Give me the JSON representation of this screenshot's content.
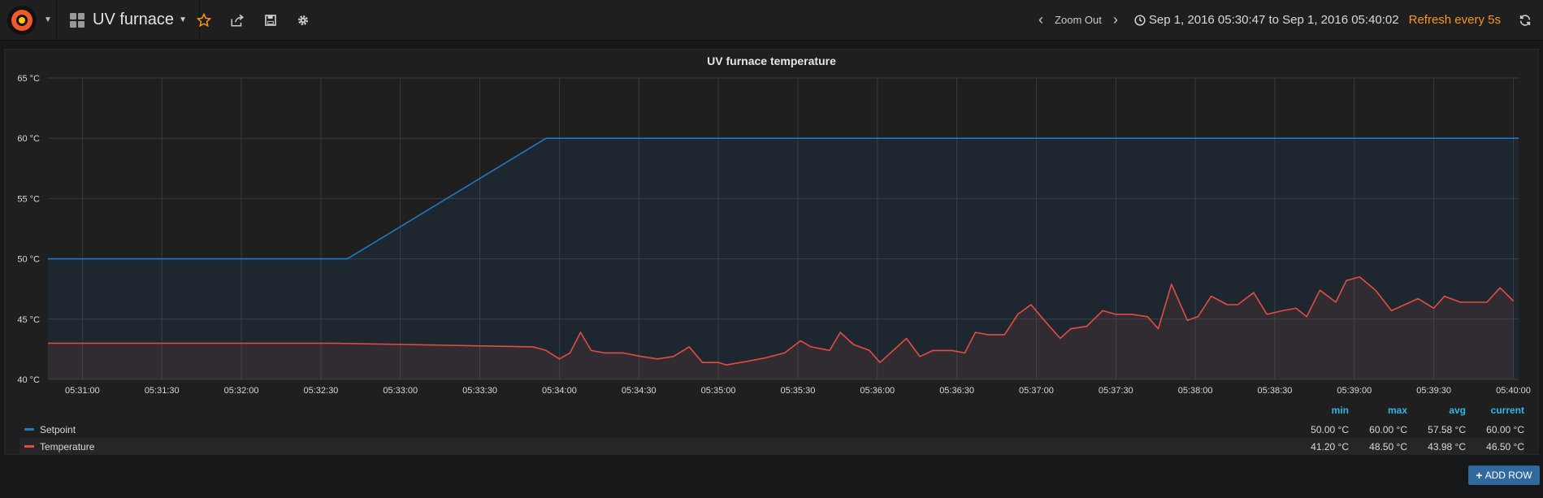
{
  "nav": {
    "dashboard_title": "UV furnace",
    "zoom_label": "Zoom Out",
    "time_range": "Sep 1, 2016 05:30:47 to Sep 1, 2016 05:40:02",
    "refresh_label": "Refresh every 5s"
  },
  "panel": {
    "title": "UV furnace temperature"
  },
  "legend": {
    "headers": [
      "min",
      "max",
      "avg",
      "current"
    ],
    "rows": [
      {
        "name": "Setpoint",
        "color": "#1f78c1",
        "min": "50.00 °C",
        "max": "60.00 °C",
        "avg": "57.58 °C",
        "current": "60.00 °C"
      },
      {
        "name": "Temperature",
        "color": "#e24d42",
        "min": "41.20 °C",
        "max": "48.50 °C",
        "avg": "43.98 °C",
        "current": "46.50 °C"
      }
    ]
  },
  "add_row_label": "ADD ROW",
  "chart_data": {
    "type": "line",
    "title": "UV furnace temperature",
    "x_start": "05:30:47",
    "x_end": "05:40:02",
    "x_ticks": [
      "05:31:00",
      "05:31:30",
      "05:32:00",
      "05:32:30",
      "05:33:00",
      "05:33:30",
      "05:34:00",
      "05:34:30",
      "05:35:00",
      "05:35:30",
      "05:36:00",
      "05:36:30",
      "05:37:00",
      "05:37:30",
      "05:38:00",
      "05:38:30",
      "05:39:00",
      "05:39:30",
      "05:40:00"
    ],
    "y_ticks": [
      "40 °C",
      "45 °C",
      "50 °C",
      "55 °C",
      "60 °C",
      "65 °C"
    ],
    "ylim": [
      40,
      65
    ],
    "grid": true,
    "legend_placement": "bottom",
    "series": [
      {
        "name": "Setpoint",
        "color": "#1f78c1",
        "points": [
          [
            "05:30:47",
            50
          ],
          [
            "05:32:40",
            50
          ],
          [
            "05:33:55",
            60
          ],
          [
            "05:40:02",
            60
          ]
        ]
      },
      {
        "name": "Temperature",
        "color": "#e24d42",
        "points": [
          [
            "05:30:47",
            43.0
          ],
          [
            "05:32:35",
            43.0
          ],
          [
            "05:33:50",
            42.7
          ],
          [
            "05:33:55",
            42.4
          ],
          [
            "05:34:00",
            41.7
          ],
          [
            "05:34:04",
            42.2
          ],
          [
            "05:34:08",
            43.9
          ],
          [
            "05:34:12",
            42.4
          ],
          [
            "05:34:17",
            42.2
          ],
          [
            "05:34:24",
            42.2
          ],
          [
            "05:34:31",
            41.9
          ],
          [
            "05:34:37",
            41.7
          ],
          [
            "05:34:43",
            41.9
          ],
          [
            "05:34:49",
            42.7
          ],
          [
            "05:34:54",
            41.4
          ],
          [
            "05:35:00",
            41.4
          ],
          [
            "05:35:03",
            41.2
          ],
          [
            "05:35:11",
            41.5
          ],
          [
            "05:35:18",
            41.8
          ],
          [
            "05:35:25",
            42.2
          ],
          [
            "05:35:31",
            43.2
          ],
          [
            "05:35:35",
            42.7
          ],
          [
            "05:35:42",
            42.4
          ],
          [
            "05:35:46",
            43.9
          ],
          [
            "05:35:51",
            42.9
          ],
          [
            "05:35:57",
            42.4
          ],
          [
            "05:36:01",
            41.4
          ],
          [
            "05:36:11",
            43.4
          ],
          [
            "05:36:16",
            41.9
          ],
          [
            "05:36:21",
            42.4
          ],
          [
            "05:36:28",
            42.4
          ],
          [
            "05:36:33",
            42.2
          ],
          [
            "05:36:37",
            43.9
          ],
          [
            "05:36:42",
            43.7
          ],
          [
            "05:36:48",
            43.7
          ],
          [
            "05:36:53",
            45.4
          ],
          [
            "05:36:58",
            46.2
          ],
          [
            "05:37:03",
            44.9
          ],
          [
            "05:37:09",
            43.4
          ],
          [
            "05:37:13",
            44.2
          ],
          [
            "05:37:19",
            44.4
          ],
          [
            "05:37:25",
            45.7
          ],
          [
            "05:37:30",
            45.4
          ],
          [
            "05:37:36",
            45.4
          ],
          [
            "05:37:42",
            45.2
          ],
          [
            "05:37:46",
            44.2
          ],
          [
            "05:37:51",
            47.9
          ],
          [
            "05:37:57",
            44.9
          ],
          [
            "05:38:01",
            45.2
          ],
          [
            "05:38:06",
            46.9
          ],
          [
            "05:38:12",
            46.2
          ],
          [
            "05:38:16",
            46.2
          ],
          [
            "05:38:22",
            47.2
          ],
          [
            "05:38:27",
            45.4
          ],
          [
            "05:38:33",
            45.7
          ],
          [
            "05:38:38",
            45.9
          ],
          [
            "05:38:42",
            45.2
          ],
          [
            "05:38:47",
            47.4
          ],
          [
            "05:38:53",
            46.4
          ],
          [
            "05:38:57",
            48.2
          ],
          [
            "05:39:02",
            48.5
          ],
          [
            "05:39:08",
            47.4
          ],
          [
            "05:39:14",
            45.7
          ],
          [
            "05:39:24",
            46.7
          ],
          [
            "05:39:30",
            45.9
          ],
          [
            "05:39:34",
            46.9
          ],
          [
            "05:39:40",
            46.4
          ],
          [
            "05:39:50",
            46.4
          ],
          [
            "05:39:55",
            47.6
          ],
          [
            "05:40:00",
            46.5
          ]
        ]
      }
    ]
  }
}
